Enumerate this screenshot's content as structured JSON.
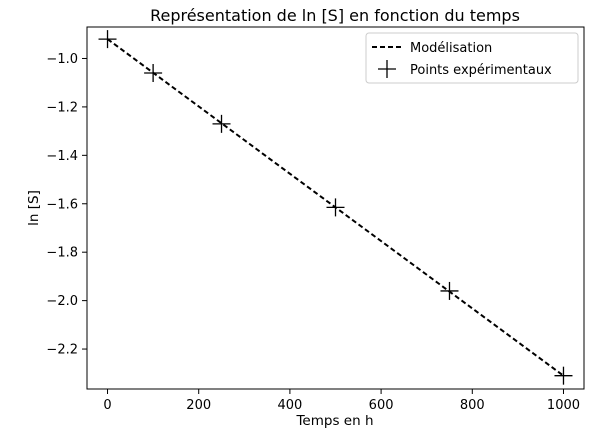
{
  "chart_data": {
    "type": "line",
    "title": "Représentation de ln [S] en fonction du temps",
    "xlabel": "Temps en h",
    "ylabel": "ln [S]",
    "xlim": [
      -45,
      1045
    ],
    "ylim": [
      -2.365,
      -0.87
    ],
    "xticks": [
      0,
      200,
      400,
      600,
      800,
      1000
    ],
    "yticks": [
      -1.0,
      -1.2,
      -1.4,
      -1.6,
      -1.8,
      -2.0,
      -2.2
    ],
    "xtick_labels": [
      "0",
      "200",
      "400",
      "600",
      "800",
      "1000"
    ],
    "ytick_labels": [
      "−1.0",
      "−1.2",
      "−1.4",
      "−1.6",
      "−1.8",
      "−2.0",
      "−2.2"
    ],
    "grid": false,
    "legend_position": "top-right",
    "series": [
      {
        "name": "Modélisation",
        "style": "dashed-line",
        "color": "#000000",
        "x": [
          0,
          1000
        ],
        "y": [
          -0.92,
          -2.31
        ]
      },
      {
        "name": "Points expérimentaux",
        "style": "plus-markers",
        "color": "#000000",
        "x": [
          0,
          100,
          250,
          500,
          750,
          1000
        ],
        "y": [
          -0.92,
          -1.06,
          -1.27,
          -1.615,
          -1.96,
          -2.31
        ]
      }
    ]
  }
}
